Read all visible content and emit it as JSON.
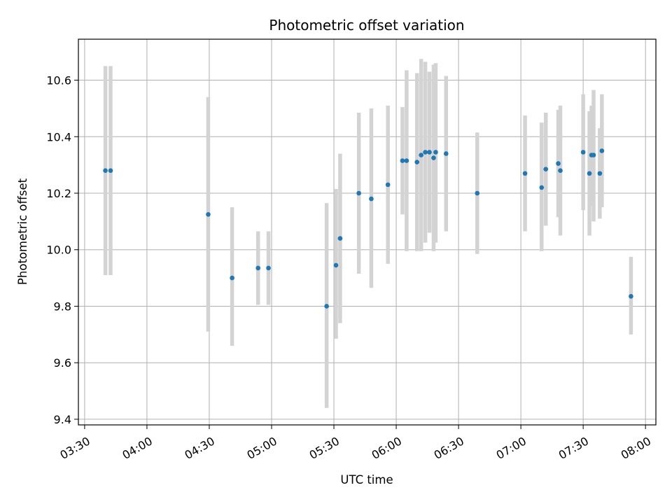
{
  "chart_data": {
    "type": "scatter",
    "title": "Photometric offset variation",
    "xlabel": "UTC time",
    "ylabel": "Photometric offset",
    "x_unit": "UTC time of day",
    "xlim": [
      "03:27",
      "08:05"
    ],
    "ylim": [
      9.38,
      10.745
    ],
    "grid": true,
    "x_ticks": [
      "03:30",
      "04:00",
      "04:30",
      "05:00",
      "05:30",
      "06:00",
      "06:30",
      "07:00",
      "07:30",
      "08:00"
    ],
    "y_ticks": [
      "9.4",
      "9.6",
      "9.8",
      "10.0",
      "10.2",
      "10.4",
      "10.6"
    ],
    "colors": {
      "point": "#1f77b4",
      "errorbar": "#d3d3d3",
      "grid": "#b0b0b0"
    },
    "points": [
      {
        "x": "03:40:00",
        "y": 10.28,
        "lo": 9.91,
        "hi": 10.65
      },
      {
        "x": "03:42:30",
        "y": 10.28,
        "lo": 9.91,
        "hi": 10.65
      },
      {
        "x": "04:29:30",
        "y": 10.125,
        "lo": 9.71,
        "hi": 10.54
      },
      {
        "x": "04:41:00",
        "y": 9.9,
        "lo": 9.66,
        "hi": 10.15
      },
      {
        "x": "04:53:30",
        "y": 9.935,
        "lo": 9.805,
        "hi": 10.065
      },
      {
        "x": "04:58:30",
        "y": 9.935,
        "lo": 9.805,
        "hi": 10.065
      },
      {
        "x": "05:26:30",
        "y": 9.8,
        "lo": 9.44,
        "hi": 10.165
      },
      {
        "x": "05:31:00",
        "y": 9.945,
        "lo": 9.685,
        "hi": 10.215
      },
      {
        "x": "05:33:00",
        "y": 10.04,
        "lo": 9.74,
        "hi": 10.34
      },
      {
        "x": "05:42:00",
        "y": 10.2,
        "lo": 9.915,
        "hi": 10.485
      },
      {
        "x": "05:48:00",
        "y": 10.18,
        "lo": 9.865,
        "hi": 10.5
      },
      {
        "x": "05:56:00",
        "y": 10.23,
        "lo": 9.95,
        "hi": 10.51
      },
      {
        "x": "06:03:00",
        "y": 10.315,
        "lo": 10.125,
        "hi": 10.505
      },
      {
        "x": "06:05:00",
        "y": 10.315,
        "lo": 9.995,
        "hi": 10.635
      },
      {
        "x": "06:10:00",
        "y": 10.31,
        "lo": 9.995,
        "hi": 10.625
      },
      {
        "x": "06:12:00",
        "y": 10.335,
        "lo": 9.995,
        "hi": 10.675
      },
      {
        "x": "06:14:00",
        "y": 10.345,
        "lo": 10.025,
        "hi": 10.665
      },
      {
        "x": "06:16:00",
        "y": 10.345,
        "lo": 10.06,
        "hi": 10.63
      },
      {
        "x": "06:18:00",
        "y": 10.325,
        "lo": 9.995,
        "hi": 10.655
      },
      {
        "x": "06:19:00",
        "y": 10.345,
        "lo": 10.025,
        "hi": 10.66
      },
      {
        "x": "06:24:00",
        "y": 10.34,
        "lo": 10.065,
        "hi": 10.615
      },
      {
        "x": "06:39:00",
        "y": 10.2,
        "lo": 9.985,
        "hi": 10.415
      },
      {
        "x": "07:02:00",
        "y": 10.27,
        "lo": 10.065,
        "hi": 10.475
      },
      {
        "x": "07:10:00",
        "y": 10.22,
        "lo": 9.995,
        "hi": 10.45
      },
      {
        "x": "07:12:00",
        "y": 10.285,
        "lo": 10.085,
        "hi": 10.485
      },
      {
        "x": "07:18:00",
        "y": 10.305,
        "lo": 10.115,
        "hi": 10.495
      },
      {
        "x": "07:19:00",
        "y": 10.28,
        "lo": 10.05,
        "hi": 10.51
      },
      {
        "x": "07:30:00",
        "y": 10.345,
        "lo": 10.14,
        "hi": 10.55
      },
      {
        "x": "07:33:00",
        "y": 10.27,
        "lo": 10.05,
        "hi": 10.49
      },
      {
        "x": "07:34:00",
        "y": 10.335,
        "lo": 10.155,
        "hi": 10.51
      },
      {
        "x": "07:35:00",
        "y": 10.335,
        "lo": 10.1,
        "hi": 10.565
      },
      {
        "x": "07:38:00",
        "y": 10.27,
        "lo": 10.11,
        "hi": 10.43
      },
      {
        "x": "07:39:00",
        "y": 10.35,
        "lo": 10.15,
        "hi": 10.55
      },
      {
        "x": "07:53:00",
        "y": 9.835,
        "lo": 9.7,
        "hi": 9.975
      }
    ]
  }
}
